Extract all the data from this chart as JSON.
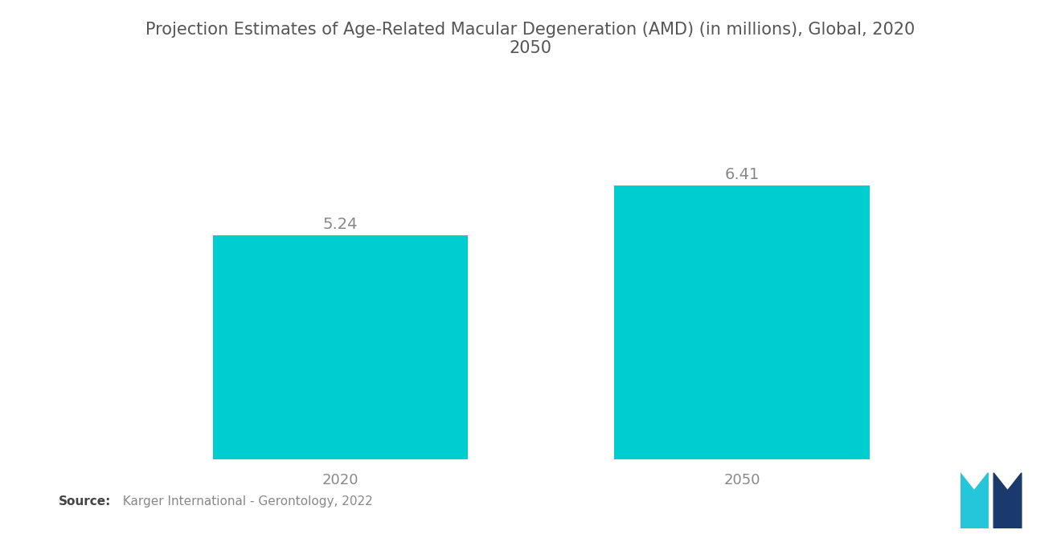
{
  "title": "Projection Estimates of Age-Related Macular Degeneration (AMD) (in millions), Global, 2020\n2050",
  "categories": [
    "2020",
    "2050"
  ],
  "values": [
    5.24,
    6.41
  ],
  "bar_color": "#00CDD0",
  "bar_width": 0.28,
  "value_labels": [
    "5.24",
    "6.41"
  ],
  "value_color": "#888888",
  "value_fontsize": 14,
  "title_fontsize": 15,
  "title_color": "#555555",
  "tick_color": "#888888",
  "tick_fontsize": 13,
  "source_text": "Source:",
  "source_detail": "  Karger International - Gerontology, 2022",
  "source_fontsize": 11,
  "source_bold_color": "#444444",
  "source_color": "#888888",
  "background_color": "#ffffff",
  "ylim": [
    0,
    7.5
  ],
  "bar_positions": [
    0.28,
    0.72
  ]
}
